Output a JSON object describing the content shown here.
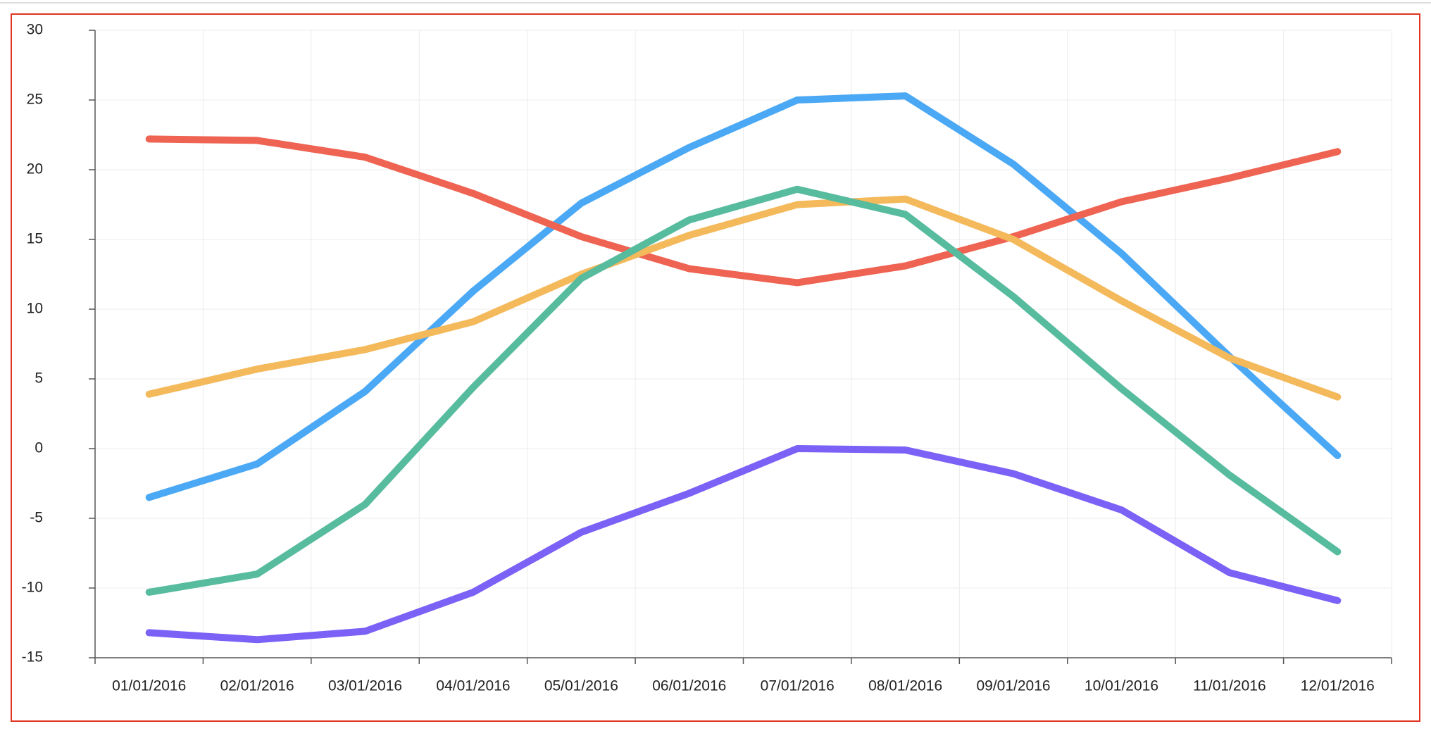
{
  "chart_data": {
    "type": "line",
    "categories": [
      "01/01/2016",
      "02/01/2016",
      "03/01/2016",
      "04/01/2016",
      "05/01/2016",
      "06/01/2016",
      "07/01/2016",
      "08/01/2016",
      "09/01/2016",
      "10/01/2016",
      "11/01/2016",
      "12/01/2016"
    ],
    "series": [
      {
        "color": "#4aa8f5",
        "values": [
          -3.5,
          -1.1,
          4.1,
          11.3,
          17.6,
          21.6,
          25.0,
          25.3,
          20.4,
          14.0,
          6.6,
          -0.5
        ]
      },
      {
        "color": "#ee6352",
        "values": [
          22.2,
          22.1,
          20.9,
          18.3,
          15.2,
          12.9,
          11.9,
          13.1,
          15.2,
          17.7,
          19.4,
          21.3
        ]
      },
      {
        "color": "#f4b95a",
        "values": [
          3.9,
          5.7,
          7.1,
          9.1,
          12.5,
          15.3,
          17.5,
          17.9,
          15.0,
          10.6,
          6.5,
          3.7
        ]
      },
      {
        "color": "#57bb9d",
        "values": [
          -10.3,
          -9.0,
          -4.0,
          4.4,
          12.2,
          16.4,
          18.6,
          16.8,
          10.9,
          4.3,
          -1.9,
          -7.4
        ]
      },
      {
        "color": "#7b61f5",
        "values": [
          -13.2,
          -13.7,
          -13.1,
          -10.3,
          -6.0,
          -3.2,
          0.0,
          -0.1,
          -1.8,
          -4.4,
          -8.9,
          -10.9
        ]
      }
    ],
    "ylim": [
      -15,
      30
    ],
    "yticks": [
      -15,
      -10,
      -5,
      0,
      5,
      10,
      15,
      20,
      25,
      30
    ],
    "grid": true
  }
}
